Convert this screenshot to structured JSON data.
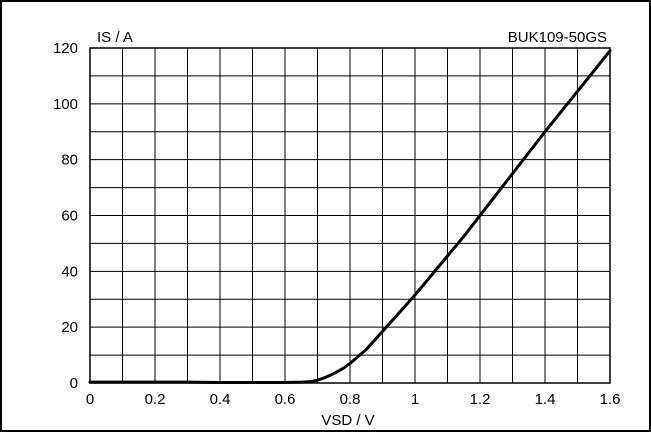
{
  "chart_data": {
    "type": "line",
    "corner_label": "BUK109-50GS",
    "xlabel": "VSD / V",
    "ylabel": "IS / A",
    "xlim": [
      0,
      1.6
    ],
    "ylim": [
      0,
      120
    ],
    "x_major_ticks": [
      0,
      0.2,
      0.4,
      0.6,
      0.8,
      1,
      1.2,
      1.4,
      1.6
    ],
    "y_major_ticks": [
      0,
      20,
      40,
      60,
      80,
      100,
      120
    ],
    "x_grid_step": 0.1,
    "y_grid_step": 10,
    "grid": true,
    "series": [
      {
        "x": [
          0,
          0.1,
          0.2,
          0.3,
          0.4,
          0.5,
          0.6,
          0.65,
          0.68,
          0.7,
          0.72,
          0.74,
          0.76,
          0.78,
          0.8,
          0.82,
          0.85,
          0.9,
          0.95,
          1.0,
          1.05,
          1.1,
          1.15,
          1.2,
          1.3,
          1.4,
          1.5,
          1.6
        ],
        "y": [
          0.3,
          0.3,
          0.3,
          0.3,
          0.2,
          0.2,
          0.2,
          0.3,
          0.5,
          1.0,
          1.8,
          2.8,
          4.0,
          5.3,
          7.0,
          9.0,
          12.0,
          18.5,
          25.0,
          31.5,
          38.5,
          45.5,
          52.5,
          60.0,
          75.0,
          90.0,
          104.5,
          119.0
        ],
        "color": "#000000"
      }
    ]
  }
}
